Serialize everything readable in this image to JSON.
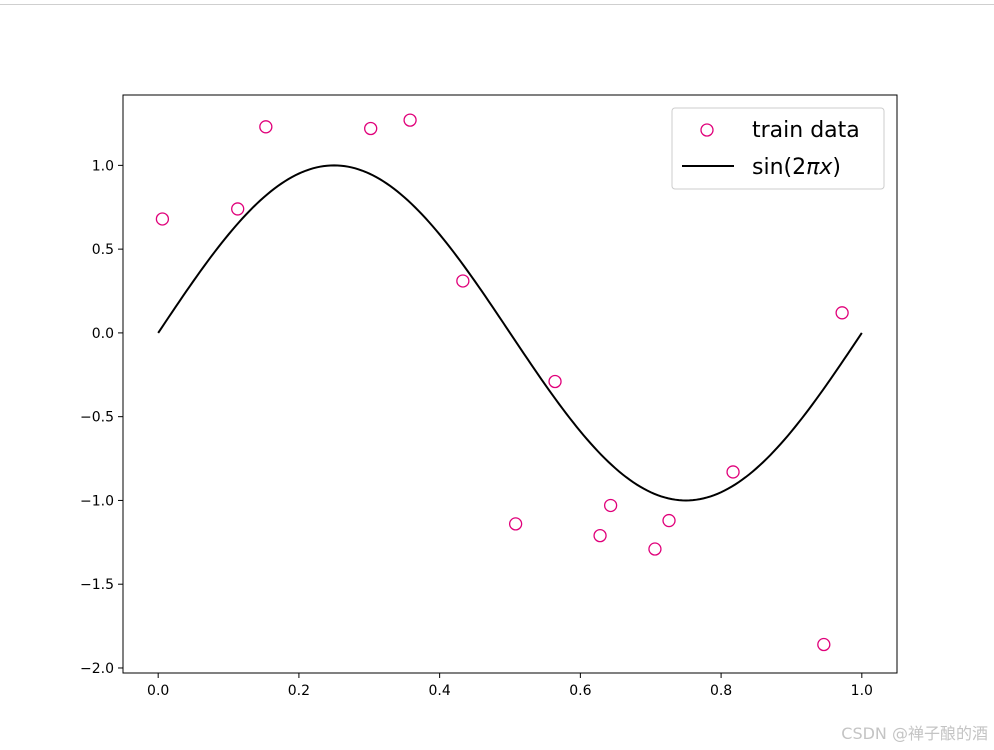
{
  "chart_data": {
    "type": "scatter",
    "title": "",
    "xlabel": "",
    "ylabel": "",
    "xlim": [
      -0.05,
      1.05
    ],
    "ylim": [
      -2.03,
      1.42
    ],
    "xticks": [
      0.0,
      0.2,
      0.4,
      0.6,
      0.8,
      1.0
    ],
    "xtick_labels": [
      "0.0",
      "0.2",
      "0.4",
      "0.6",
      "0.8",
      "1.0"
    ],
    "yticks": [
      -2.0,
      -1.5,
      -1.0,
      -0.5,
      0.0,
      0.5,
      1.0
    ],
    "ytick_labels": [
      "−2.0",
      "−1.5",
      "−1.0",
      "−0.5",
      "0.0",
      "0.5",
      "1.0"
    ],
    "grid": false,
    "legend_position": "top-right",
    "series": [
      {
        "name": "train data",
        "kind": "scatter",
        "marker": "open-circle",
        "color": "#e0007a",
        "x": [
          0.006,
          0.113,
          0.153,
          0.302,
          0.358,
          0.433,
          0.508,
          0.564,
          0.628,
          0.643,
          0.706,
          0.726,
          0.817,
          0.946,
          0.972
        ],
        "y": [
          0.68,
          0.74,
          1.23,
          1.22,
          1.27,
          0.31,
          -1.14,
          -0.29,
          -1.21,
          -1.03,
          -1.29,
          -1.12,
          -0.83,
          -1.86,
          0.12
        ]
      },
      {
        "name": "sin(2πx)",
        "kind": "line",
        "function": "sin(2*pi*x)",
        "x_range": [
          0,
          1
        ],
        "color": "#000000"
      }
    ]
  },
  "legend": {
    "entries": [
      {
        "label": "train data"
      },
      {
        "label_prefix": "sin(2",
        "label_pi": "π",
        "label_x": "x",
        "label_suffix": ")"
      }
    ]
  },
  "watermark": "CSDN @禅子酿的酒"
}
